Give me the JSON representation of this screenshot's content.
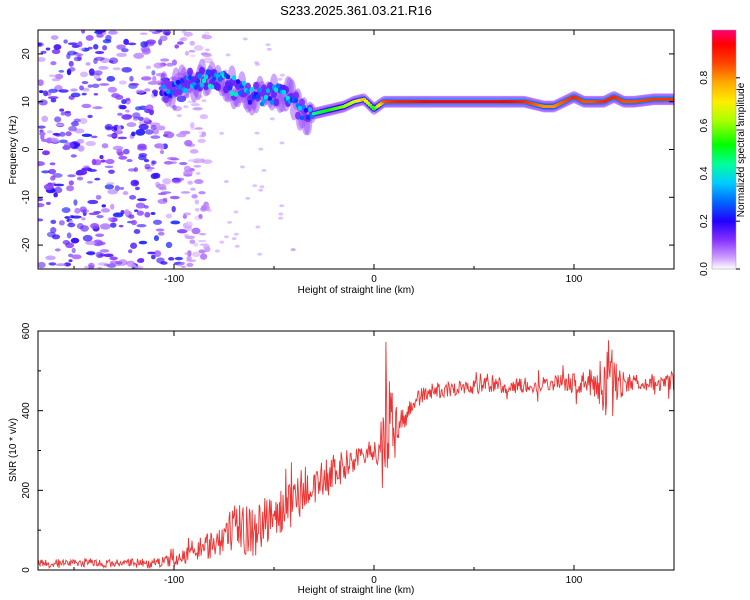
{
  "title": "S233.2025.361.03.21.R16",
  "chart_data": [
    {
      "type": "heatmap",
      "xlabel": "Height of straight line (km)",
      "ylabel": "Frequency (Hz)",
      "xlim": [
        -168,
        150
      ],
      "ylim": [
        -25,
        25
      ],
      "xticks": [
        -100,
        0,
        100
      ],
      "yticks": [
        -20,
        -10,
        0,
        10,
        20
      ],
      "colorbar": {
        "label": "Normalized spectral amplitude",
        "range": [
          0,
          1
        ],
        "ticks": [
          0.0,
          0.2,
          0.4,
          0.6,
          0.8
        ],
        "colors": [
          "#ffffff",
          "#9933ff",
          "#3300ff",
          "#0066ff",
          "#00ccff",
          "#00ff99",
          "#00ff00",
          "#ccff00",
          "#ffcc00",
          "#ff6600",
          "#ff0000",
          "#ff0066"
        ]
      },
      "noise_region": {
        "x": [
          -168,
          -95
        ],
        "y": [
          -25,
          25
        ],
        "amplitude": 0.12
      },
      "ridge": {
        "x": [
          -105,
          -95,
          -85,
          -75,
          -65,
          -55,
          -45,
          -40,
          -35,
          -30,
          -25,
          -20,
          -15,
          -10,
          -5,
          0,
          5,
          10,
          20,
          30,
          40,
          50,
          60,
          70,
          75,
          80,
          85,
          90,
          95,
          100,
          105,
          110,
          115,
          120,
          125,
          130,
          140,
          150
        ],
        "freq": [
          12,
          14,
          15,
          14,
          12,
          11,
          12,
          10,
          7.5,
          7.5,
          8,
          8.5,
          9,
          10,
          10.5,
          8.5,
          10,
          10,
          10,
          10,
          10,
          10,
          10,
          10,
          10,
          9.5,
          9,
          9,
          10,
          11,
          10,
          10,
          10,
          11,
          10,
          10,
          10.5,
          10.5
        ],
        "amp": [
          0.35,
          0.4,
          0.45,
          0.45,
          0.4,
          0.4,
          0.45,
          0.4,
          0.35,
          0.45,
          0.5,
          0.55,
          0.6,
          0.65,
          0.75,
          0.5,
          0.85,
          0.9,
          0.92,
          0.95,
          0.95,
          0.95,
          0.95,
          0.93,
          0.9,
          0.85,
          0.8,
          0.8,
          0.85,
          0.9,
          0.85,
          0.85,
          0.9,
          0.9,
          0.85,
          0.85,
          0.88,
          0.88
        ]
      }
    },
    {
      "type": "line",
      "xlabel": "Height of straight line (km)",
      "ylabel": "SNR (10 * v/v)",
      "xlim": [
        -168,
        150
      ],
      "ylim": [
        0,
        600
      ],
      "xticks": [
        -100,
        0,
        100
      ],
      "yticks": [
        0,
        200,
        400,
        600
      ],
      "color": "#ee3333",
      "series": [
        {
          "name": "SNR",
          "x": [
            -168,
            -150,
            -130,
            -110,
            -100,
            -90,
            -80,
            -70,
            -65,
            -60,
            -55,
            -50,
            -45,
            -40,
            -35,
            -30,
            -25,
            -20,
            -15,
            -10,
            -5,
            0,
            5,
            8,
            10,
            12,
            15,
            20,
            25,
            30,
            40,
            50,
            60,
            70,
            80,
            90,
            100,
            110,
            115,
            118,
            120,
            125,
            130,
            140,
            150
          ],
          "y": [
            18,
            17,
            17,
            18,
            25,
            45,
            70,
            100,
            110,
            95,
            125,
            135,
            150,
            175,
            200,
            210,
            230,
            245,
            260,
            275,
            290,
            300,
            320,
            330,
            340,
            360,
            380,
            420,
            440,
            450,
            455,
            460,
            465,
            460,
            465,
            470,
            470,
            468,
            472,
            470,
            468,
            470,
            472,
            468,
            470
          ],
          "spread": [
            10,
            10,
            10,
            12,
            15,
            25,
            40,
            60,
            70,
            70,
            60,
            60,
            60,
            60,
            60,
            60,
            45,
            45,
            40,
            30,
            25,
            30,
            120,
            150,
            90,
            40,
            30,
            25,
            20,
            20,
            20,
            20,
            20,
            20,
            20,
            20,
            25,
            40,
            80,
            120,
            70,
            30,
            20,
            20,
            20
          ]
        }
      ]
    }
  ]
}
